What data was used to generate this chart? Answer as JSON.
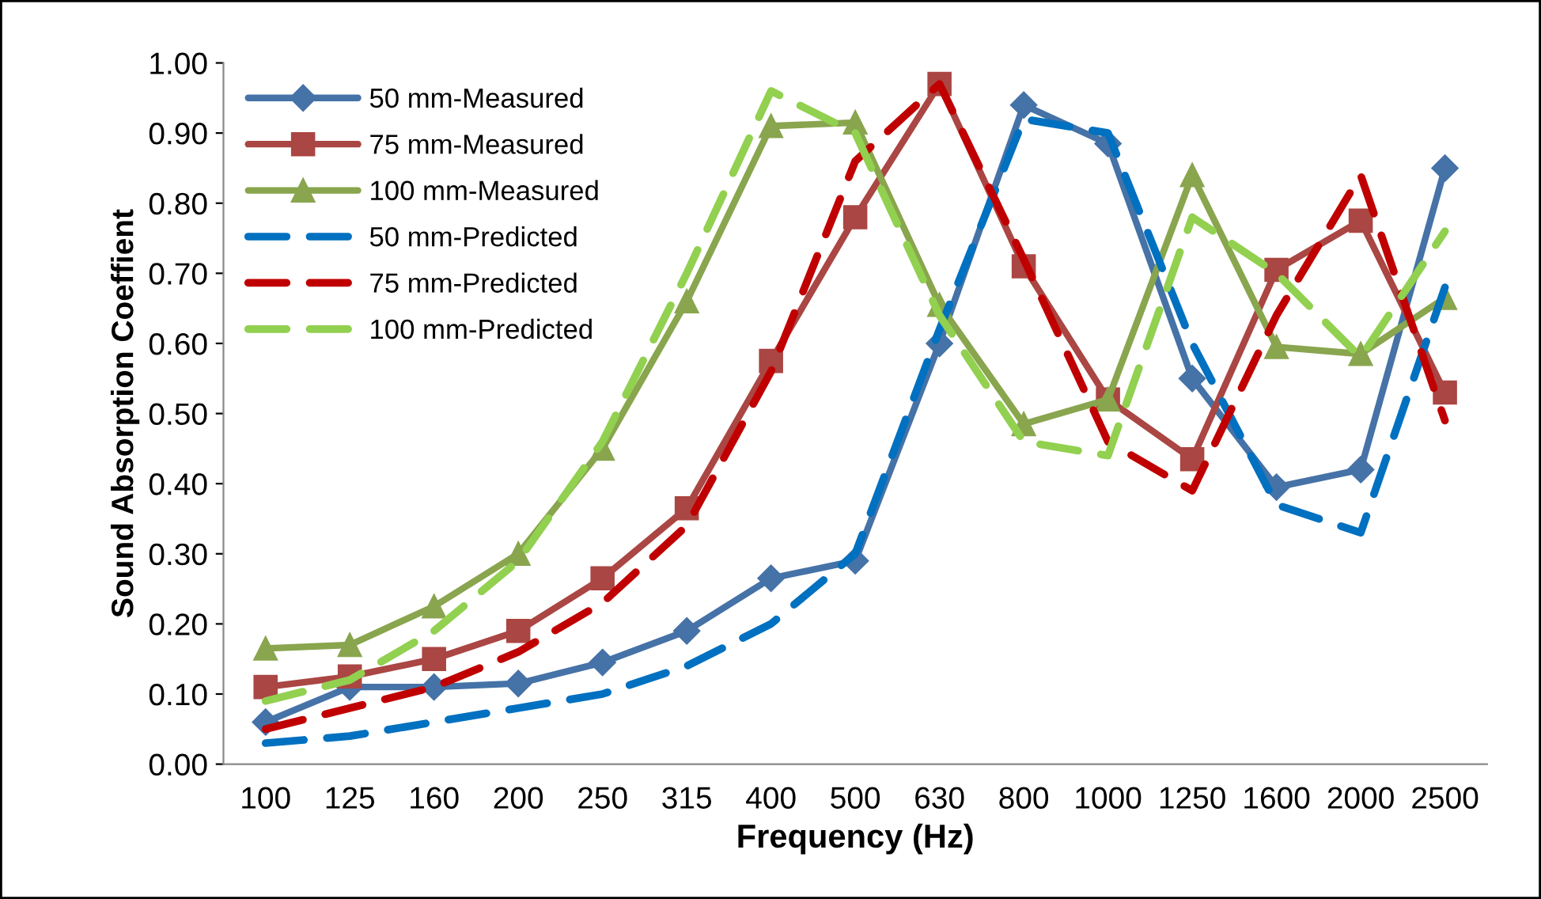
{
  "chart_data": {
    "type": "line",
    "xlabel": "Frequency (Hz)",
    "ylabel": "Sound Absorption Coeffient",
    "categories": [
      "100",
      "125",
      "160",
      "200",
      "250",
      "315",
      "400",
      "500",
      "630",
      "800",
      "1000",
      "1250",
      "1600",
      "2000",
      "2500"
    ],
    "ylim": [
      0,
      1
    ],
    "yticks": [
      {
        "value": 0,
        "label": "0.00"
      },
      {
        "value": 0.1,
        "label": "0.10"
      },
      {
        "value": 0.2,
        "label": "0.20"
      },
      {
        "value": 0.3,
        "label": "0.30"
      },
      {
        "value": 0.4,
        "label": "0.40"
      },
      {
        "value": 0.5,
        "label": "0.50"
      },
      {
        "value": 0.6,
        "label": "0.60"
      },
      {
        "value": 0.7,
        "label": "0.70"
      },
      {
        "value": 0.8,
        "label": "0.80"
      },
      {
        "value": 0.9,
        "label": "0.90"
      },
      {
        "value": 1,
        "label": "1.00"
      }
    ],
    "grid": false,
    "legend": "top left",
    "series": [
      {
        "name": "50 mm-Measured",
        "color": "#4572a7",
        "marker": "diamond",
        "line_style": "solid",
        "values": [
          0.06,
          0.11,
          0.11,
          0.115,
          0.145,
          0.19,
          0.265,
          0.29,
          0.6,
          0.94,
          0.885,
          0.55,
          0.395,
          0.42,
          0.85
        ]
      },
      {
        "name": "75 mm-Measured",
        "color": "#aa4643",
        "marker": "square",
        "line_style": "solid",
        "values": [
          0.11,
          0.125,
          0.15,
          0.19,
          0.265,
          0.365,
          0.575,
          0.78,
          0.97,
          0.71,
          0.52,
          0.435,
          0.705,
          0.775,
          0.53
        ]
      },
      {
        "name": "100 mm-Measured",
        "color": "#89a54e",
        "marker": "triangle",
        "line_style": "solid",
        "values": [
          0.165,
          0.17,
          0.225,
          0.3,
          0.45,
          0.66,
          0.91,
          0.915,
          0.655,
          0.485,
          0.52,
          0.84,
          0.595,
          0.585,
          0.665
        ]
      },
      {
        "name": "50 mm-Predicted",
        "color": "#0070c0",
        "marker": "none",
        "line_style": "dashed",
        "values": [
          0.03,
          0.04,
          0.06,
          0.08,
          0.1,
          0.14,
          0.2,
          0.3,
          0.62,
          0.92,
          0.9,
          0.6,
          0.37,
          0.33,
          0.68
        ]
      },
      {
        "name": "75 mm-Predicted",
        "color": "#c00000",
        "marker": "none",
        "line_style": "dashed",
        "values": [
          0.05,
          0.08,
          0.11,
          0.16,
          0.23,
          0.34,
          0.56,
          0.86,
          0.97,
          0.72,
          0.46,
          0.39,
          0.64,
          0.84,
          0.49
        ]
      },
      {
        "name": "100 mm-Predicted",
        "color": "#92d050",
        "marker": "none",
        "line_style": "dashed",
        "values": [
          0.09,
          0.12,
          0.19,
          0.29,
          0.46,
          0.7,
          0.96,
          0.9,
          0.64,
          0.46,
          0.44,
          0.78,
          0.7,
          0.58,
          0.76
        ]
      }
    ]
  }
}
